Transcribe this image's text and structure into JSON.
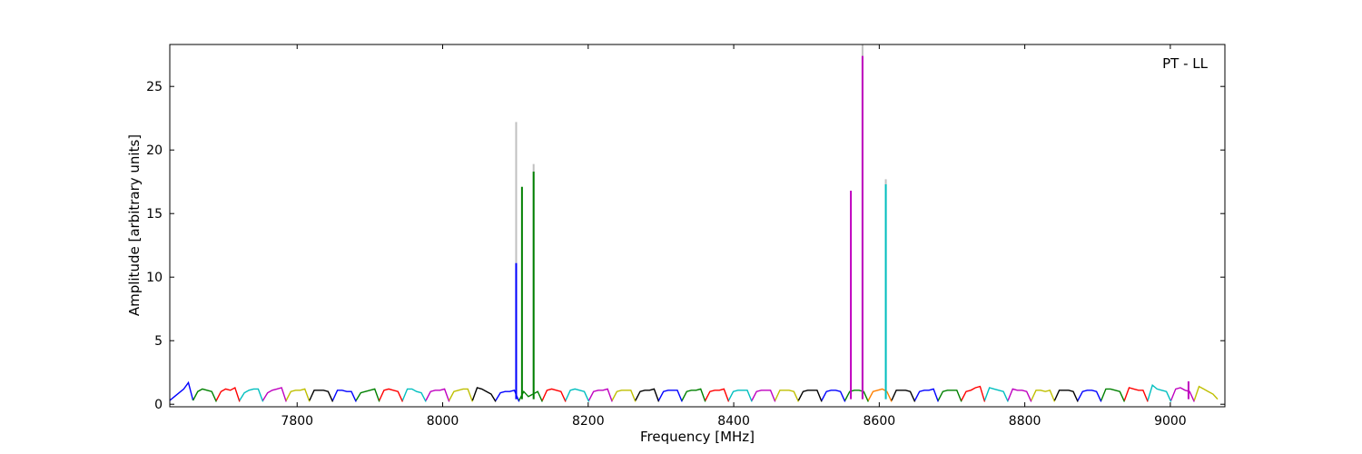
{
  "chart_data": {
    "type": "line",
    "title": "",
    "annotation": "PT - LL",
    "xlabel": "Frequency [MHz]",
    "ylabel": "Amplitude [arbitrary units]",
    "xlim": [
      7625,
      9075
    ],
    "ylim": [
      -0.2,
      28.3
    ],
    "xticks": [
      7800,
      8000,
      8200,
      8400,
      8600,
      8800,
      9000
    ],
    "yticks": [
      0,
      5,
      10,
      15,
      20,
      25
    ],
    "grid": false,
    "legend": "none",
    "channel_width_mhz": 32,
    "channel_start_mhz": 7625,
    "channel_colors": [
      "#0000ff",
      "#008000",
      "#ff0000",
      "#00bfbf",
      "#bf00bf",
      "#bfbf00",
      "#000000"
    ],
    "background_spectrum_color": "#c0c0c0",
    "series": [
      {
        "channel_start": 7625,
        "color": "#0000ff",
        "values": [
          0.3,
          0.6,
          0.9,
          1.2,
          1.7,
          0.3
        ]
      },
      {
        "channel_start": 7657,
        "color": "#008000",
        "values": [
          0.3,
          1.0,
          1.2,
          1.1,
          1.0,
          0.2
        ]
      },
      {
        "channel_start": 7689,
        "color": "#ff0000",
        "values": [
          0.3,
          1.0,
          1.2,
          1.1,
          1.3,
          0.2
        ]
      },
      {
        "channel_start": 7721,
        "color": "#00bfbf",
        "values": [
          0.3,
          0.9,
          1.1,
          1.2,
          1.2,
          0.2
        ]
      },
      {
        "channel_start": 7753,
        "color": "#bf00bf",
        "values": [
          0.3,
          0.9,
          1.1,
          1.2,
          1.3,
          0.2
        ]
      },
      {
        "channel_start": 7785,
        "color": "#bfbf00",
        "values": [
          0.3,
          1.0,
          1.1,
          1.1,
          1.2,
          0.2
        ]
      },
      {
        "channel_start": 7817,
        "color": "#000000",
        "values": [
          0.3,
          1.1,
          1.1,
          1.1,
          1.0,
          0.2
        ]
      },
      {
        "channel_start": 7849,
        "color": "#0000ff",
        "values": [
          0.3,
          1.1,
          1.1,
          1.0,
          1.0,
          0.2
        ]
      },
      {
        "channel_start": 7881,
        "color": "#008000",
        "values": [
          0.3,
          0.9,
          1.0,
          1.1,
          1.2,
          0.2
        ]
      },
      {
        "channel_start": 7913,
        "color": "#ff0000",
        "values": [
          0.3,
          1.1,
          1.2,
          1.1,
          1.0,
          0.2
        ]
      },
      {
        "channel_start": 7945,
        "color": "#00bfbf",
        "values": [
          0.3,
          1.2,
          1.2,
          1.0,
          0.9,
          0.2
        ]
      },
      {
        "channel_start": 7977,
        "color": "#bf00bf",
        "values": [
          0.3,
          1.0,
          1.1,
          1.1,
          1.2,
          0.2
        ]
      },
      {
        "channel_start": 8009,
        "color": "#bfbf00",
        "values": [
          0.3,
          1.0,
          1.1,
          1.2,
          1.2,
          0.2
        ]
      },
      {
        "channel_start": 8041,
        "color": "#000000",
        "values": [
          0.3,
          1.3,
          1.2,
          1.0,
          0.8,
          0.2
        ]
      },
      {
        "channel_start": 8073,
        "color": "#0000ff",
        "values": [
          0.3,
          0.9,
          1.0,
          1.0,
          1.1,
          0.2
        ]
      },
      {
        "channel_start": 8105,
        "color": "#008000",
        "values": [
          0.3,
          1.0,
          0.6,
          0.8,
          1.0,
          0.2
        ]
      },
      {
        "channel_start": 8137,
        "color": "#ff0000",
        "values": [
          0.3,
          1.1,
          1.2,
          1.1,
          1.0,
          0.2
        ]
      },
      {
        "channel_start": 8169,
        "color": "#00bfbf",
        "values": [
          0.3,
          1.1,
          1.2,
          1.1,
          1.0,
          0.2
        ]
      },
      {
        "channel_start": 8201,
        "color": "#bf00bf",
        "values": [
          0.3,
          1.0,
          1.1,
          1.1,
          1.2,
          0.2
        ]
      },
      {
        "channel_start": 8233,
        "color": "#bfbf00",
        "values": [
          0.3,
          1.0,
          1.1,
          1.1,
          1.1,
          0.2
        ]
      },
      {
        "channel_start": 8265,
        "color": "#000000",
        "values": [
          0.3,
          1.0,
          1.1,
          1.1,
          1.2,
          0.2
        ]
      },
      {
        "channel_start": 8297,
        "color": "#0000ff",
        "values": [
          0.3,
          1.0,
          1.1,
          1.1,
          1.1,
          0.2
        ]
      },
      {
        "channel_start": 8329,
        "color": "#008000",
        "values": [
          0.3,
          1.0,
          1.1,
          1.1,
          1.2,
          0.2
        ]
      },
      {
        "channel_start": 8361,
        "color": "#ff0000",
        "values": [
          0.3,
          1.0,
          1.1,
          1.1,
          1.2,
          0.2
        ]
      },
      {
        "channel_start": 8393,
        "color": "#00bfbf",
        "values": [
          0.3,
          1.0,
          1.1,
          1.1,
          1.1,
          0.2
        ]
      },
      {
        "channel_start": 8425,
        "color": "#bf00bf",
        "values": [
          0.3,
          1.0,
          1.1,
          1.1,
          1.1,
          0.2
        ]
      },
      {
        "channel_start": 8457,
        "color": "#bfbf00",
        "values": [
          0.3,
          1.1,
          1.1,
          1.1,
          1.0,
          0.2
        ]
      },
      {
        "channel_start": 8489,
        "color": "#000000",
        "values": [
          0.3,
          1.0,
          1.1,
          1.1,
          1.1,
          0.2
        ]
      },
      {
        "channel_start": 8521,
        "color": "#0000ff",
        "values": [
          0.3,
          1.0,
          1.1,
          1.1,
          1.0,
          0.2
        ]
      },
      {
        "channel_start": 8553,
        "color": "#008000",
        "values": [
          0.3,
          1.0,
          1.1,
          1.1,
          1.0,
          0.2
        ]
      },
      {
        "channel_start": 8585,
        "color": "#ff8000",
        "values": [
          0.3,
          1.0,
          1.1,
          1.2,
          1.0,
          0.2
        ]
      },
      {
        "channel_start": 8617,
        "color": "#000000",
        "values": [
          0.3,
          1.1,
          1.1,
          1.1,
          1.0,
          0.2
        ]
      },
      {
        "channel_start": 8649,
        "color": "#0000ff",
        "values": [
          0.3,
          1.0,
          1.1,
          1.1,
          1.2,
          0.2
        ]
      },
      {
        "channel_start": 8681,
        "color": "#008000",
        "values": [
          0.3,
          1.0,
          1.1,
          1.1,
          1.1,
          0.2
        ]
      },
      {
        "channel_start": 8713,
        "color": "#ff0000",
        "values": [
          0.3,
          1.0,
          1.1,
          1.3,
          1.4,
          0.2
        ]
      },
      {
        "channel_start": 8745,
        "color": "#00bfbf",
        "values": [
          0.3,
          1.3,
          1.2,
          1.1,
          1.0,
          0.2
        ]
      },
      {
        "channel_start": 8777,
        "color": "#bf00bf",
        "values": [
          0.3,
          1.2,
          1.1,
          1.1,
          1.0,
          0.2
        ]
      },
      {
        "channel_start": 8809,
        "color": "#bfbf00",
        "values": [
          0.3,
          1.1,
          1.1,
          1.0,
          1.1,
          0.2
        ]
      },
      {
        "channel_start": 8841,
        "color": "#000000",
        "values": [
          0.3,
          1.1,
          1.1,
          1.1,
          1.0,
          0.2
        ]
      },
      {
        "channel_start": 8873,
        "color": "#0000ff",
        "values": [
          0.3,
          1.0,
          1.1,
          1.1,
          1.0,
          0.2
        ]
      },
      {
        "channel_start": 8905,
        "color": "#008000",
        "values": [
          0.3,
          1.2,
          1.2,
          1.1,
          1.0,
          0.2
        ]
      },
      {
        "channel_start": 8937,
        "color": "#ff0000",
        "values": [
          0.3,
          1.3,
          1.2,
          1.1,
          1.1,
          0.2
        ]
      },
      {
        "channel_start": 8969,
        "color": "#00bfbf",
        "values": [
          0.3,
          1.5,
          1.2,
          1.1,
          1.0,
          0.2
        ]
      },
      {
        "channel_start": 9001,
        "color": "#bf00bf",
        "values": [
          0.3,
          1.2,
          1.3,
          1.1,
          1.0,
          0.2
        ]
      },
      {
        "channel_start": 9033,
        "color": "#bfbf00",
        "values": [
          0.3,
          1.4,
          1.2,
          1.0,
          0.8,
          0.4
        ]
      }
    ],
    "spikes": [
      {
        "x": 8101,
        "y": 22.2,
        "color": "#c0c0c0"
      },
      {
        "x": 8101,
        "y": 11.1,
        "color": "#0000ff"
      },
      {
        "x": 8109,
        "y": 17.1,
        "color": "#008000"
      },
      {
        "x": 8125,
        "y": 18.9,
        "color": "#c0c0c0"
      },
      {
        "x": 8125,
        "y": 18.3,
        "color": "#008000"
      },
      {
        "x": 8561,
        "y": 16.8,
        "color": "#bf00bf"
      },
      {
        "x": 8577,
        "y": 28.3,
        "color": "#c0c0c0"
      },
      {
        "x": 8577,
        "y": 27.4,
        "color": "#bf00bf"
      },
      {
        "x": 8609,
        "y": 17.7,
        "color": "#c0c0c0"
      },
      {
        "x": 8609,
        "y": 17.3,
        "color": "#00bfbf"
      },
      {
        "x": 9025,
        "y": 1.8,
        "color": "#bf00bf"
      }
    ]
  }
}
